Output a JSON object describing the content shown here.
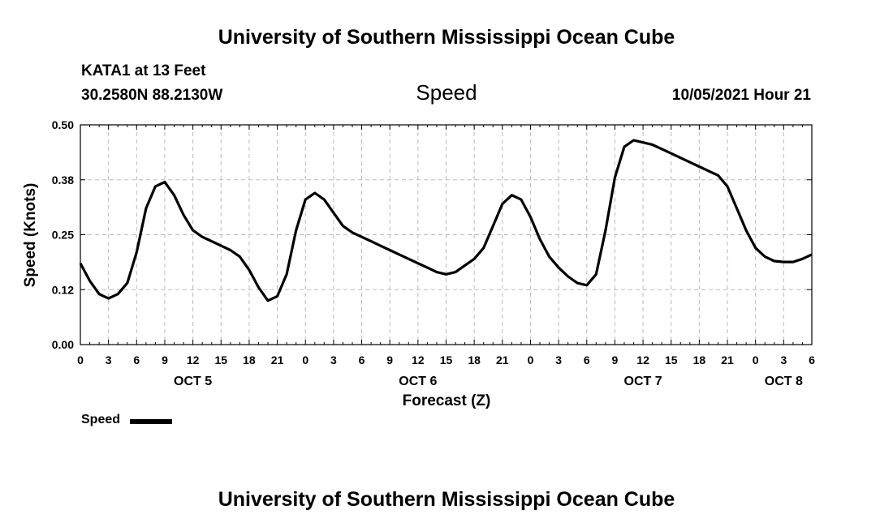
{
  "header": {
    "title": "University of Southern Mississippi Ocean Cube",
    "station": "KATA1 at 13 Feet",
    "coords": "30.2580N  88.2130W",
    "timestamp": "10/05/2021 Hour 21"
  },
  "footer": {
    "title": "University of Southern Mississippi Ocean Cube"
  },
  "legend": {
    "label": "Speed"
  },
  "chart_data": {
    "type": "line",
    "title": "Speed",
    "xlabel": "Forecast (Z)",
    "ylabel": "Speed (Knots)",
    "ylim": [
      0,
      0.5
    ],
    "xlim": [
      0,
      78
    ],
    "y_ticks": [
      "0.00",
      "0.12",
      "0.25",
      "0.38",
      "0.50"
    ],
    "x_ticks": [
      "0",
      "3",
      "6",
      "9",
      "12",
      "15",
      "18",
      "21",
      "0",
      "3",
      "6",
      "9",
      "12",
      "15",
      "18",
      "21",
      "0",
      "3",
      "6",
      "9",
      "12",
      "15",
      "18",
      "21",
      "0",
      "3",
      "6"
    ],
    "date_labels": [
      {
        "label": "OCT 5",
        "x": 12
      },
      {
        "label": "OCT 6",
        "x": 36
      },
      {
        "label": "OCT 7",
        "x": 60
      },
      {
        "label": "OCT 8",
        "x": 75
      }
    ],
    "grid": true,
    "x_unit": "forecast hours from 10/05 00Z",
    "series": [
      {
        "name": "Speed",
        "color": "#000000",
        "x": [
          0,
          1,
          2,
          3,
          4,
          5,
          6,
          7,
          8,
          9,
          10,
          11,
          12,
          13,
          14,
          15,
          16,
          17,
          18,
          19,
          20,
          21,
          22,
          23,
          24,
          25,
          26,
          27,
          28,
          29,
          30,
          31,
          32,
          33,
          34,
          35,
          36,
          37,
          38,
          39,
          40,
          41,
          42,
          43,
          44,
          45,
          46,
          47,
          48,
          49,
          50,
          51,
          52,
          53,
          54,
          55,
          56,
          57,
          58,
          59,
          60,
          61,
          62,
          63,
          64,
          65,
          66,
          67,
          68,
          69,
          70,
          71,
          72,
          73,
          74,
          75,
          76,
          77,
          78
        ],
        "values": [
          0.185,
          0.145,
          0.115,
          0.105,
          0.115,
          0.14,
          0.21,
          0.31,
          0.36,
          0.37,
          0.34,
          0.295,
          0.26,
          0.245,
          0.235,
          0.225,
          0.215,
          0.2,
          0.17,
          0.13,
          0.1,
          0.11,
          0.16,
          0.26,
          0.33,
          0.345,
          0.33,
          0.3,
          0.27,
          0.255,
          0.245,
          0.235,
          0.225,
          0.215,
          0.205,
          0.195,
          0.185,
          0.175,
          0.165,
          0.16,
          0.165,
          0.18,
          0.195,
          0.22,
          0.27,
          0.32,
          0.34,
          0.33,
          0.29,
          0.24,
          0.2,
          0.175,
          0.155,
          0.14,
          0.135,
          0.16,
          0.26,
          0.38,
          0.45,
          0.465,
          0.46,
          0.455,
          0.445,
          0.435,
          0.425,
          0.415,
          0.405,
          0.395,
          0.385,
          0.36,
          0.31,
          0.26,
          0.22,
          0.2,
          0.19,
          0.188,
          0.188,
          0.195,
          0.205
        ]
      }
    ]
  }
}
